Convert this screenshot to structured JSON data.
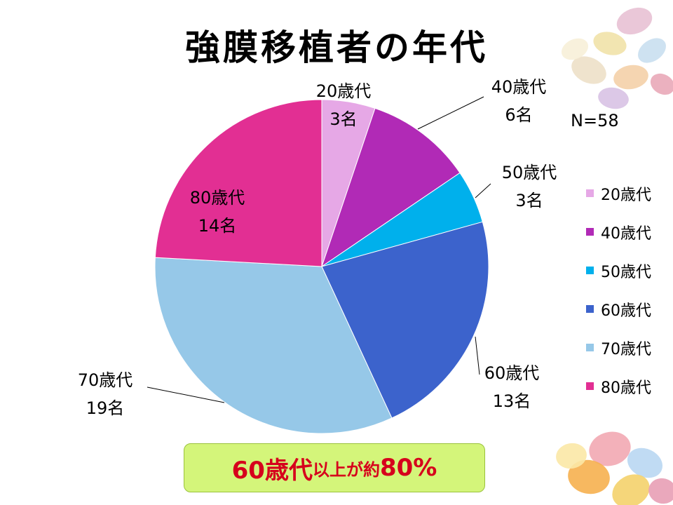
{
  "slide": {
    "title": "強膜移植者の年代",
    "n_label": "N=58",
    "callout": {
      "part1": "60歳代",
      "part2": "以上が約",
      "part3": "80%"
    }
  },
  "chart_data": {
    "type": "pie",
    "title": "強膜移植者の年代",
    "total_label": "N=58",
    "labels": [
      "20歳代",
      "40歳代",
      "50歳代",
      "60歳代",
      "70歳代",
      "80歳代"
    ],
    "values": [
      3,
      6,
      3,
      13,
      19,
      14
    ],
    "value_labels": [
      "3名",
      "6名",
      "3名",
      "13名",
      "19名",
      "14名"
    ],
    "colors": [
      "#e6a8e6",
      "#b12ab6",
      "#00b0ec",
      "#3c63cc",
      "#96c8e8",
      "#e22f93"
    ],
    "start_angle": "12 o'clock",
    "direction": "clockwise",
    "legend_position": "right"
  }
}
